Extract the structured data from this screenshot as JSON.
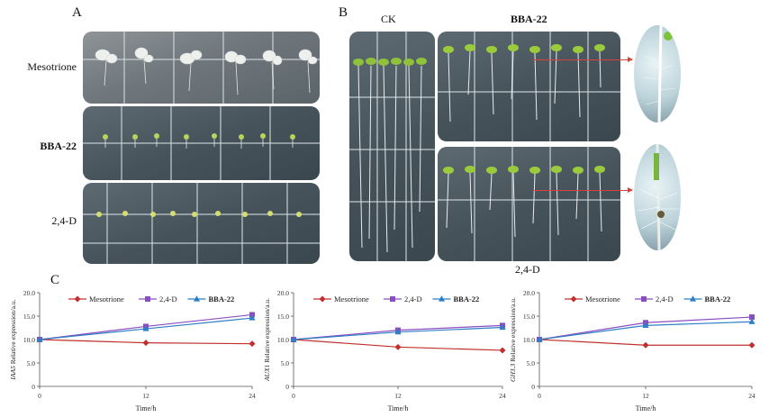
{
  "panels": {
    "a": "A",
    "b": "B",
    "c": "C"
  },
  "panel_a": {
    "rows": [
      "Mesotrione",
      "BBA-22",
      "2,4-D"
    ]
  },
  "panel_b": {
    "ck": "CK",
    "bba": "BBA-22",
    "d24": "2,4-D"
  },
  "colors": {
    "mesotrione": "#c0302e",
    "d24": "#8a4ec0",
    "bba22": "#2f7fc6"
  },
  "chart_data": [
    {
      "type": "line",
      "x": [
        0,
        12,
        24
      ],
      "xlabel": "Time/h",
      "ylabel_gene": "IAA5",
      "ylabel_rest": " Relative expression/a.u.",
      "ylim": [
        0,
        20
      ],
      "yticks": [
        "0",
        "5.0",
        "10.0",
        "15.0",
        "20.0"
      ],
      "xticks": [
        "0",
        "12",
        "24"
      ],
      "series": [
        {
          "name": "Mesotrione",
          "values": [
            10.0,
            9.3,
            9.1
          ]
        },
        {
          "name": "2,4-D",
          "values": [
            10.0,
            12.8,
            15.3
          ]
        },
        {
          "name": "BBA-22",
          "values": [
            10.0,
            12.3,
            14.6
          ]
        }
      ]
    },
    {
      "type": "line",
      "x": [
        0,
        12,
        24
      ],
      "xlabel": "Time/h",
      "ylabel_gene": "AUX1",
      "ylabel_rest": " Relative expression/a.u.",
      "ylim": [
        0,
        20
      ],
      "yticks": [
        "0",
        "5.0",
        "10.0",
        "15.0",
        "20.0"
      ],
      "xticks": [
        "0",
        "12",
        "24"
      ],
      "series": [
        {
          "name": "Mesotrione",
          "values": [
            10.0,
            8.4,
            7.7
          ]
        },
        {
          "name": "2,4-D",
          "values": [
            10.0,
            12.0,
            13.0
          ]
        },
        {
          "name": "BBA-22",
          "values": [
            10.0,
            11.6,
            12.6
          ]
        }
      ]
    },
    {
      "type": "line",
      "x": [
        0,
        12,
        24
      ],
      "xlabel": "Time/h",
      "ylabel_gene": "GH3.3",
      "ylabel_rest": " Relative expression/a.u.",
      "ylim": [
        0,
        20
      ],
      "yticks": [
        "0",
        "5.0",
        "10.0",
        "15.0",
        "20.0"
      ],
      "xticks": [
        "0",
        "12",
        "24"
      ],
      "series": [
        {
          "name": "Mesotrione",
          "values": [
            10.0,
            8.8,
            8.8
          ]
        },
        {
          "name": "2,4-D",
          "values": [
            10.0,
            13.6,
            14.8
          ]
        },
        {
          "name": "BBA-22",
          "values": [
            10.0,
            13.0,
            13.8
          ]
        }
      ]
    }
  ]
}
